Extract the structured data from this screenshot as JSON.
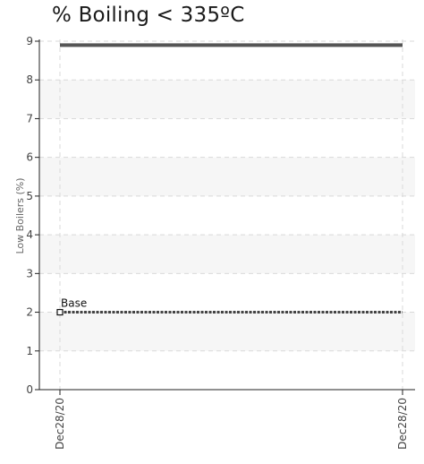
{
  "chart_data": {
    "type": "line",
    "title": "% Boiling < 335ºC",
    "ylabel": "Low Boilers (%)",
    "xlabel": "",
    "ylim": [
      0,
      9
    ],
    "y_ticks": [
      "0",
      "1",
      "2",
      "3",
      "4",
      "5",
      "6",
      "7",
      "8",
      "9"
    ],
    "x_ticks": [
      "Dec28/20",
      "Dec28/20"
    ],
    "grid": true,
    "series": [
      {
        "values": [
          8.9,
          8.9
        ],
        "style": "solid",
        "color": "#555555"
      },
      {
        "name": "Base",
        "values": [
          2,
          2
        ],
        "style": "dotted",
        "color": "#444444"
      }
    ],
    "annotations": [
      {
        "text": "Base",
        "x_index": 0,
        "y": 2
      }
    ]
  }
}
